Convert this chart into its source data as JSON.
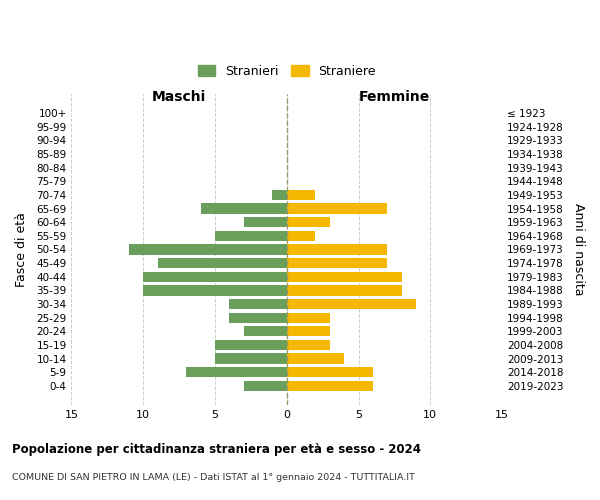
{
  "age_groups_bottom_to_top": [
    "0-4",
    "5-9",
    "10-14",
    "15-19",
    "20-24",
    "25-29",
    "30-34",
    "35-39",
    "40-44",
    "45-49",
    "50-54",
    "55-59",
    "60-64",
    "65-69",
    "70-74",
    "75-79",
    "80-84",
    "85-89",
    "90-94",
    "95-99",
    "100+"
  ],
  "birth_years_bottom_to_top": [
    "2019-2023",
    "2014-2018",
    "2009-2013",
    "2004-2008",
    "1999-2003",
    "1994-1998",
    "1989-1993",
    "1984-1988",
    "1979-1983",
    "1974-1978",
    "1969-1973",
    "1964-1968",
    "1959-1963",
    "1954-1958",
    "1949-1953",
    "1944-1948",
    "1939-1943",
    "1934-1938",
    "1929-1933",
    "1924-1928",
    "≤ 1923"
  ],
  "maschi_bottom_to_top": [
    3,
    7,
    5,
    5,
    3,
    4,
    4,
    10,
    10,
    9,
    11,
    5,
    3,
    6,
    1,
    0,
    0,
    0,
    0,
    0,
    0
  ],
  "femmine_bottom_to_top": [
    6,
    6,
    4,
    3,
    3,
    3,
    9,
    8,
    8,
    7,
    7,
    2,
    3,
    7,
    2,
    0,
    0,
    0,
    0,
    0,
    0
  ],
  "maschi_color": "#6a9e5b",
  "femmine_color": "#f5b800",
  "background_color": "#ffffff",
  "grid_color": "#cccccc",
  "title": "Popolazione per cittadinanza straniera per età e sesso - 2024",
  "subtitle": "COMUNE DI SAN PIETRO IN LAMA (LE) - Dati ISTAT al 1° gennaio 2024 - TUTTITALIA.IT",
  "xlabel_left": "Maschi",
  "xlabel_right": "Femmine",
  "ylabel_left": "Fasce di età",
  "ylabel_right": "Anni di nascita",
  "legend_maschi": "Stranieri",
  "legend_femmine": "Straniere",
  "xlim": 15,
  "bar_height": 0.75
}
